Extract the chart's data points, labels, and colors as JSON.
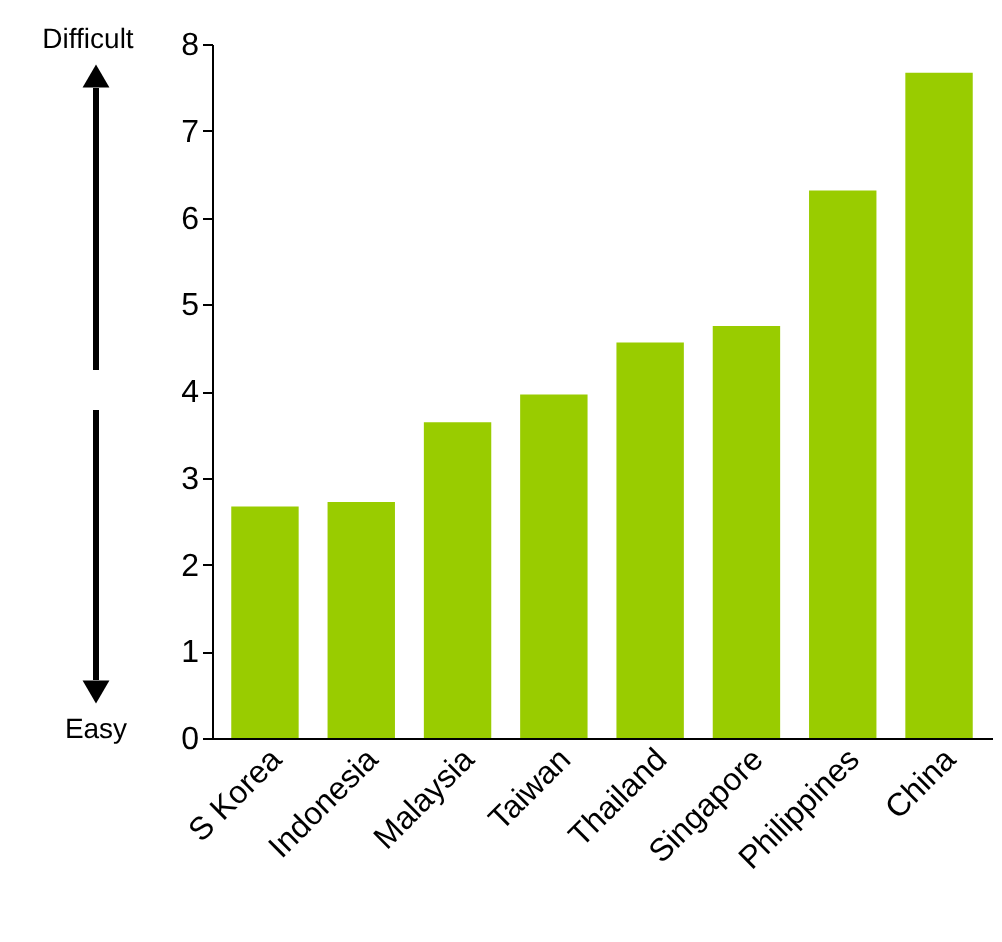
{
  "chart_data": {
    "type": "bar",
    "categories": [
      "S Korea",
      "Indonesia",
      "Malaysia",
      "Taiwan",
      "Thailand",
      "Singapore",
      "Philippines",
      "China"
    ],
    "values": [
      2.67,
      2.72,
      3.64,
      3.96,
      4.56,
      4.75,
      6.31,
      7.67
    ],
    "color": "#99cc00",
    "ylim": [
      0,
      8
    ],
    "yticks": [
      0,
      1,
      2,
      3,
      4,
      5,
      6,
      7,
      8
    ],
    "grid": false,
    "annotations": [
      "Difficult",
      "Easy"
    ]
  }
}
